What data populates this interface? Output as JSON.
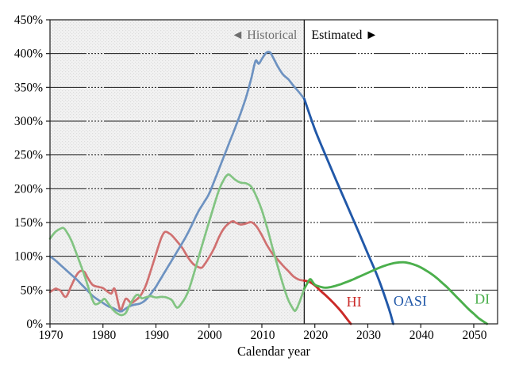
{
  "chart_data": {
    "type": "line",
    "title": "",
    "xlabel": "Calendar year",
    "ylabel": "",
    "xlim": [
      1970,
      2054.5
    ],
    "ylim": [
      0,
      450
    ],
    "grid": true,
    "legend_position": "inline-labels",
    "x_ticks": [
      1970,
      1980,
      1990,
      2000,
      2010,
      2020,
      2030,
      2040,
      2050
    ],
    "y_ticks": [
      {
        "value": 0,
        "label": "0%"
      },
      {
        "value": 50,
        "label": "50%"
      },
      {
        "value": 100,
        "label": "100%"
      },
      {
        "value": 150,
        "label": "150%"
      },
      {
        "value": 200,
        "label": "200%"
      },
      {
        "value": 250,
        "label": "250%"
      },
      {
        "value": 300,
        "label": "300%"
      },
      {
        "value": 350,
        "label": "350%"
      },
      {
        "value": 400,
        "label": "400%"
      },
      {
        "value": 450,
        "label": "450%"
      }
    ],
    "boundary_year": 2018,
    "regions": {
      "historical_label": "◄ Historical",
      "estimated_label": "Estimated ►",
      "historical_label_color": "#6E6E6E",
      "estimated_label_color": "#000000",
      "historical_fill_dot": "#DCDCDC",
      "historical_fill_base": "#F2F2F2"
    },
    "axis_color": "#1A1A1A",
    "series": [
      {
        "name": "HI",
        "label": "HI",
        "color_historical": "#D07070",
        "color_estimated": "#CB2A28",
        "label_color": "#CB2A28",
        "label_pos": [
          2027.4,
          33
        ],
        "points_historical": [
          [
            1970,
            47
          ],
          [
            1971,
            52
          ],
          [
            1971.5,
            51
          ],
          [
            1972,
            49
          ],
          [
            1973,
            40
          ],
          [
            1974,
            56
          ],
          [
            1975,
            72
          ],
          [
            1975.7,
            78
          ],
          [
            1976.5,
            77
          ],
          [
            1977,
            70
          ],
          [
            1978,
            58
          ],
          [
            1979,
            55
          ],
          [
            1980,
            53
          ],
          [
            1981,
            47
          ],
          [
            1981.6,
            45
          ],
          [
            1982.2,
            52
          ],
          [
            1983,
            27
          ],
          [
            1983.4,
            20
          ],
          [
            1984.3,
            37
          ],
          [
            1985.3,
            31
          ],
          [
            1986,
            34
          ],
          [
            1987,
            41
          ],
          [
            1988,
            55
          ],
          [
            1989,
            78
          ],
          [
            1990,
            103
          ],
          [
            1991,
            127
          ],
          [
            1991.7,
            136
          ],
          [
            1992.5,
            134
          ],
          [
            1993,
            131
          ],
          [
            1994,
            122
          ],
          [
            1995,
            112
          ],
          [
            1996,
            99
          ],
          [
            1997,
            89
          ],
          [
            1998,
            84
          ],
          [
            1998.6,
            83
          ],
          [
            1999,
            86
          ],
          [
            2000,
            98
          ],
          [
            2001,
            112
          ],
          [
            2002,
            130
          ],
          [
            2003,
            143
          ],
          [
            2004,
            150
          ],
          [
            2004.6,
            152
          ],
          [
            2005,
            150
          ],
          [
            2006,
            147
          ],
          [
            2007,
            148.5
          ],
          [
            2008,
            150.5
          ],
          [
            2009,
            144
          ],
          [
            2010,
            131
          ],
          [
            2011,
            116
          ],
          [
            2012,
            104
          ],
          [
            2013,
            95
          ],
          [
            2014,
            86
          ],
          [
            2015,
            78
          ],
          [
            2016,
            70
          ],
          [
            2017,
            65.5
          ],
          [
            2018,
            64
          ]
        ],
        "points_estimated": [
          [
            2018,
            64
          ],
          [
            2019,
            62
          ],
          [
            2020,
            57
          ],
          [
            2021,
            49.5
          ],
          [
            2022,
            42.5
          ],
          [
            2023,
            35
          ],
          [
            2024,
            27
          ],
          [
            2025,
            18
          ],
          [
            2026,
            8
          ],
          [
            2026.8,
            0
          ]
        ]
      },
      {
        "name": "OASI",
        "label": "OASI",
        "color_historical": "#6D92C1",
        "color_estimated": "#2158A8",
        "label_color": "#2158A8",
        "label_pos": [
          2038,
          34
        ],
        "points_historical": [
          [
            1970,
            100
          ],
          [
            1971,
            94
          ],
          [
            1972,
            87
          ],
          [
            1973,
            80
          ],
          [
            1974,
            73
          ],
          [
            1975,
            66
          ],
          [
            1976,
            58
          ],
          [
            1977,
            50
          ],
          [
            1978,
            42
          ],
          [
            1979,
            36
          ],
          [
            1980,
            31
          ],
          [
            1981,
            26
          ],
          [
            1982,
            23
          ],
          [
            1983,
            19
          ],
          [
            1983.5,
            18.5
          ],
          [
            1984,
            21
          ],
          [
            1985,
            26
          ],
          [
            1986,
            28.5
          ],
          [
            1987,
            30
          ],
          [
            1988,
            35
          ],
          [
            1989,
            44
          ],
          [
            1990,
            55
          ],
          [
            1991,
            68
          ],
          [
            1992,
            81
          ],
          [
            1993,
            94
          ],
          [
            1994,
            107
          ],
          [
            1995,
            120
          ],
          [
            1996,
            134
          ],
          [
            1997,
            150
          ],
          [
            1998,
            166
          ],
          [
            1999,
            179
          ],
          [
            2000,
            192
          ],
          [
            2001,
            211
          ],
          [
            2002,
            231
          ],
          [
            2003,
            251
          ],
          [
            2004,
            271
          ],
          [
            2005,
            291
          ],
          [
            2006,
            312
          ],
          [
            2007,
            335
          ],
          [
            2008,
            363
          ],
          [
            2008.8,
            389
          ],
          [
            2009.4,
            385
          ],
          [
            2010,
            392
          ],
          [
            2010.8,
            401
          ],
          [
            2011.5,
            402
          ],
          [
            2012,
            396
          ],
          [
            2013,
            381
          ],
          [
            2014,
            369
          ],
          [
            2015,
            362
          ],
          [
            2016,
            352
          ],
          [
            2017,
            343
          ],
          [
            2018,
            333
          ]
        ],
        "points_estimated": [
          [
            2018,
            333
          ],
          [
            2020,
            288
          ],
          [
            2022,
            250
          ],
          [
            2024,
            213
          ],
          [
            2026,
            177
          ],
          [
            2028,
            141
          ],
          [
            2030,
            104
          ],
          [
            2032,
            67
          ],
          [
            2034,
            22
          ],
          [
            2034.8,
            0
          ]
        ]
      },
      {
        "name": "DI",
        "label": "DI",
        "color_historical": "#82C482",
        "color_estimated": "#4BAF4C",
        "label_color": "#4BAF4C",
        "label_pos": [
          2051.6,
          37
        ],
        "points_historical": [
          [
            1970,
            126
          ],
          [
            1971,
            136
          ],
          [
            1972,
            141
          ],
          [
            1972.5,
            142
          ],
          [
            1973,
            138
          ],
          [
            1974,
            124
          ],
          [
            1975,
            104
          ],
          [
            1976,
            83
          ],
          [
            1977,
            60
          ],
          [
            1978,
            36
          ],
          [
            1978.6,
            29
          ],
          [
            1979.5,
            32
          ],
          [
            1980.3,
            37
          ],
          [
            1981,
            30
          ],
          [
            1982,
            20
          ],
          [
            1983,
            14
          ],
          [
            1983.6,
            13
          ],
          [
            1984.3,
            16
          ],
          [
            1985,
            27
          ],
          [
            1986,
            40
          ],
          [
            1986.6,
            43
          ],
          [
            1987.3,
            38
          ],
          [
            1988,
            39
          ],
          [
            1989,
            41
          ],
          [
            1990,
            39
          ],
          [
            1991,
            40
          ],
          [
            1992,
            39
          ],
          [
            1993,
            35
          ],
          [
            1994,
            24
          ],
          [
            1995,
            32
          ],
          [
            1996,
            46
          ],
          [
            1997,
            70
          ],
          [
            1998,
            97
          ],
          [
            1999,
            124
          ],
          [
            2000,
            150
          ],
          [
            2001,
            176
          ],
          [
            2002,
            200
          ],
          [
            2003,
            216
          ],
          [
            2003.6,
            221
          ],
          [
            2004,
            220
          ],
          [
            2005,
            213
          ],
          [
            2006,
            209
          ],
          [
            2007,
            208
          ],
          [
            2008,
            203
          ],
          [
            2009,
            188
          ],
          [
            2010,
            168
          ],
          [
            2011,
            142
          ],
          [
            2012,
            113
          ],
          [
            2013,
            85
          ],
          [
            2014,
            58
          ],
          [
            2015,
            35
          ],
          [
            2016,
            21
          ],
          [
            2016.4,
            20
          ],
          [
            2017,
            30
          ],
          [
            2018,
            52
          ]
        ],
        "points_estimated": [
          [
            2018,
            52
          ],
          [
            2018.8,
            63
          ],
          [
            2019.2,
            66
          ],
          [
            2020,
            58
          ],
          [
            2021,
            55
          ],
          [
            2022,
            53.5
          ],
          [
            2023,
            54.5
          ],
          [
            2024,
            56.5
          ],
          [
            2025,
            59
          ],
          [
            2026,
            62
          ],
          [
            2027,
            65
          ],
          [
            2028,
            68.5
          ],
          [
            2029,
            72
          ],
          [
            2030,
            75.5
          ],
          [
            2031,
            79
          ],
          [
            2032,
            82.5
          ],
          [
            2033,
            85.5
          ],
          [
            2034,
            88
          ],
          [
            2035,
            90
          ],
          [
            2036,
            91
          ],
          [
            2037,
            91
          ],
          [
            2038,
            89.5
          ],
          [
            2039,
            87
          ],
          [
            2040,
            83.5
          ],
          [
            2041,
            79
          ],
          [
            2042,
            74
          ],
          [
            2043,
            68
          ],
          [
            2044,
            61
          ],
          [
            2045,
            54
          ],
          [
            2046,
            46
          ],
          [
            2047,
            38
          ],
          [
            2048,
            30
          ],
          [
            2049,
            22
          ],
          [
            2050,
            15
          ],
          [
            2051,
            8
          ],
          [
            2052.5,
            0
          ]
        ]
      }
    ]
  }
}
